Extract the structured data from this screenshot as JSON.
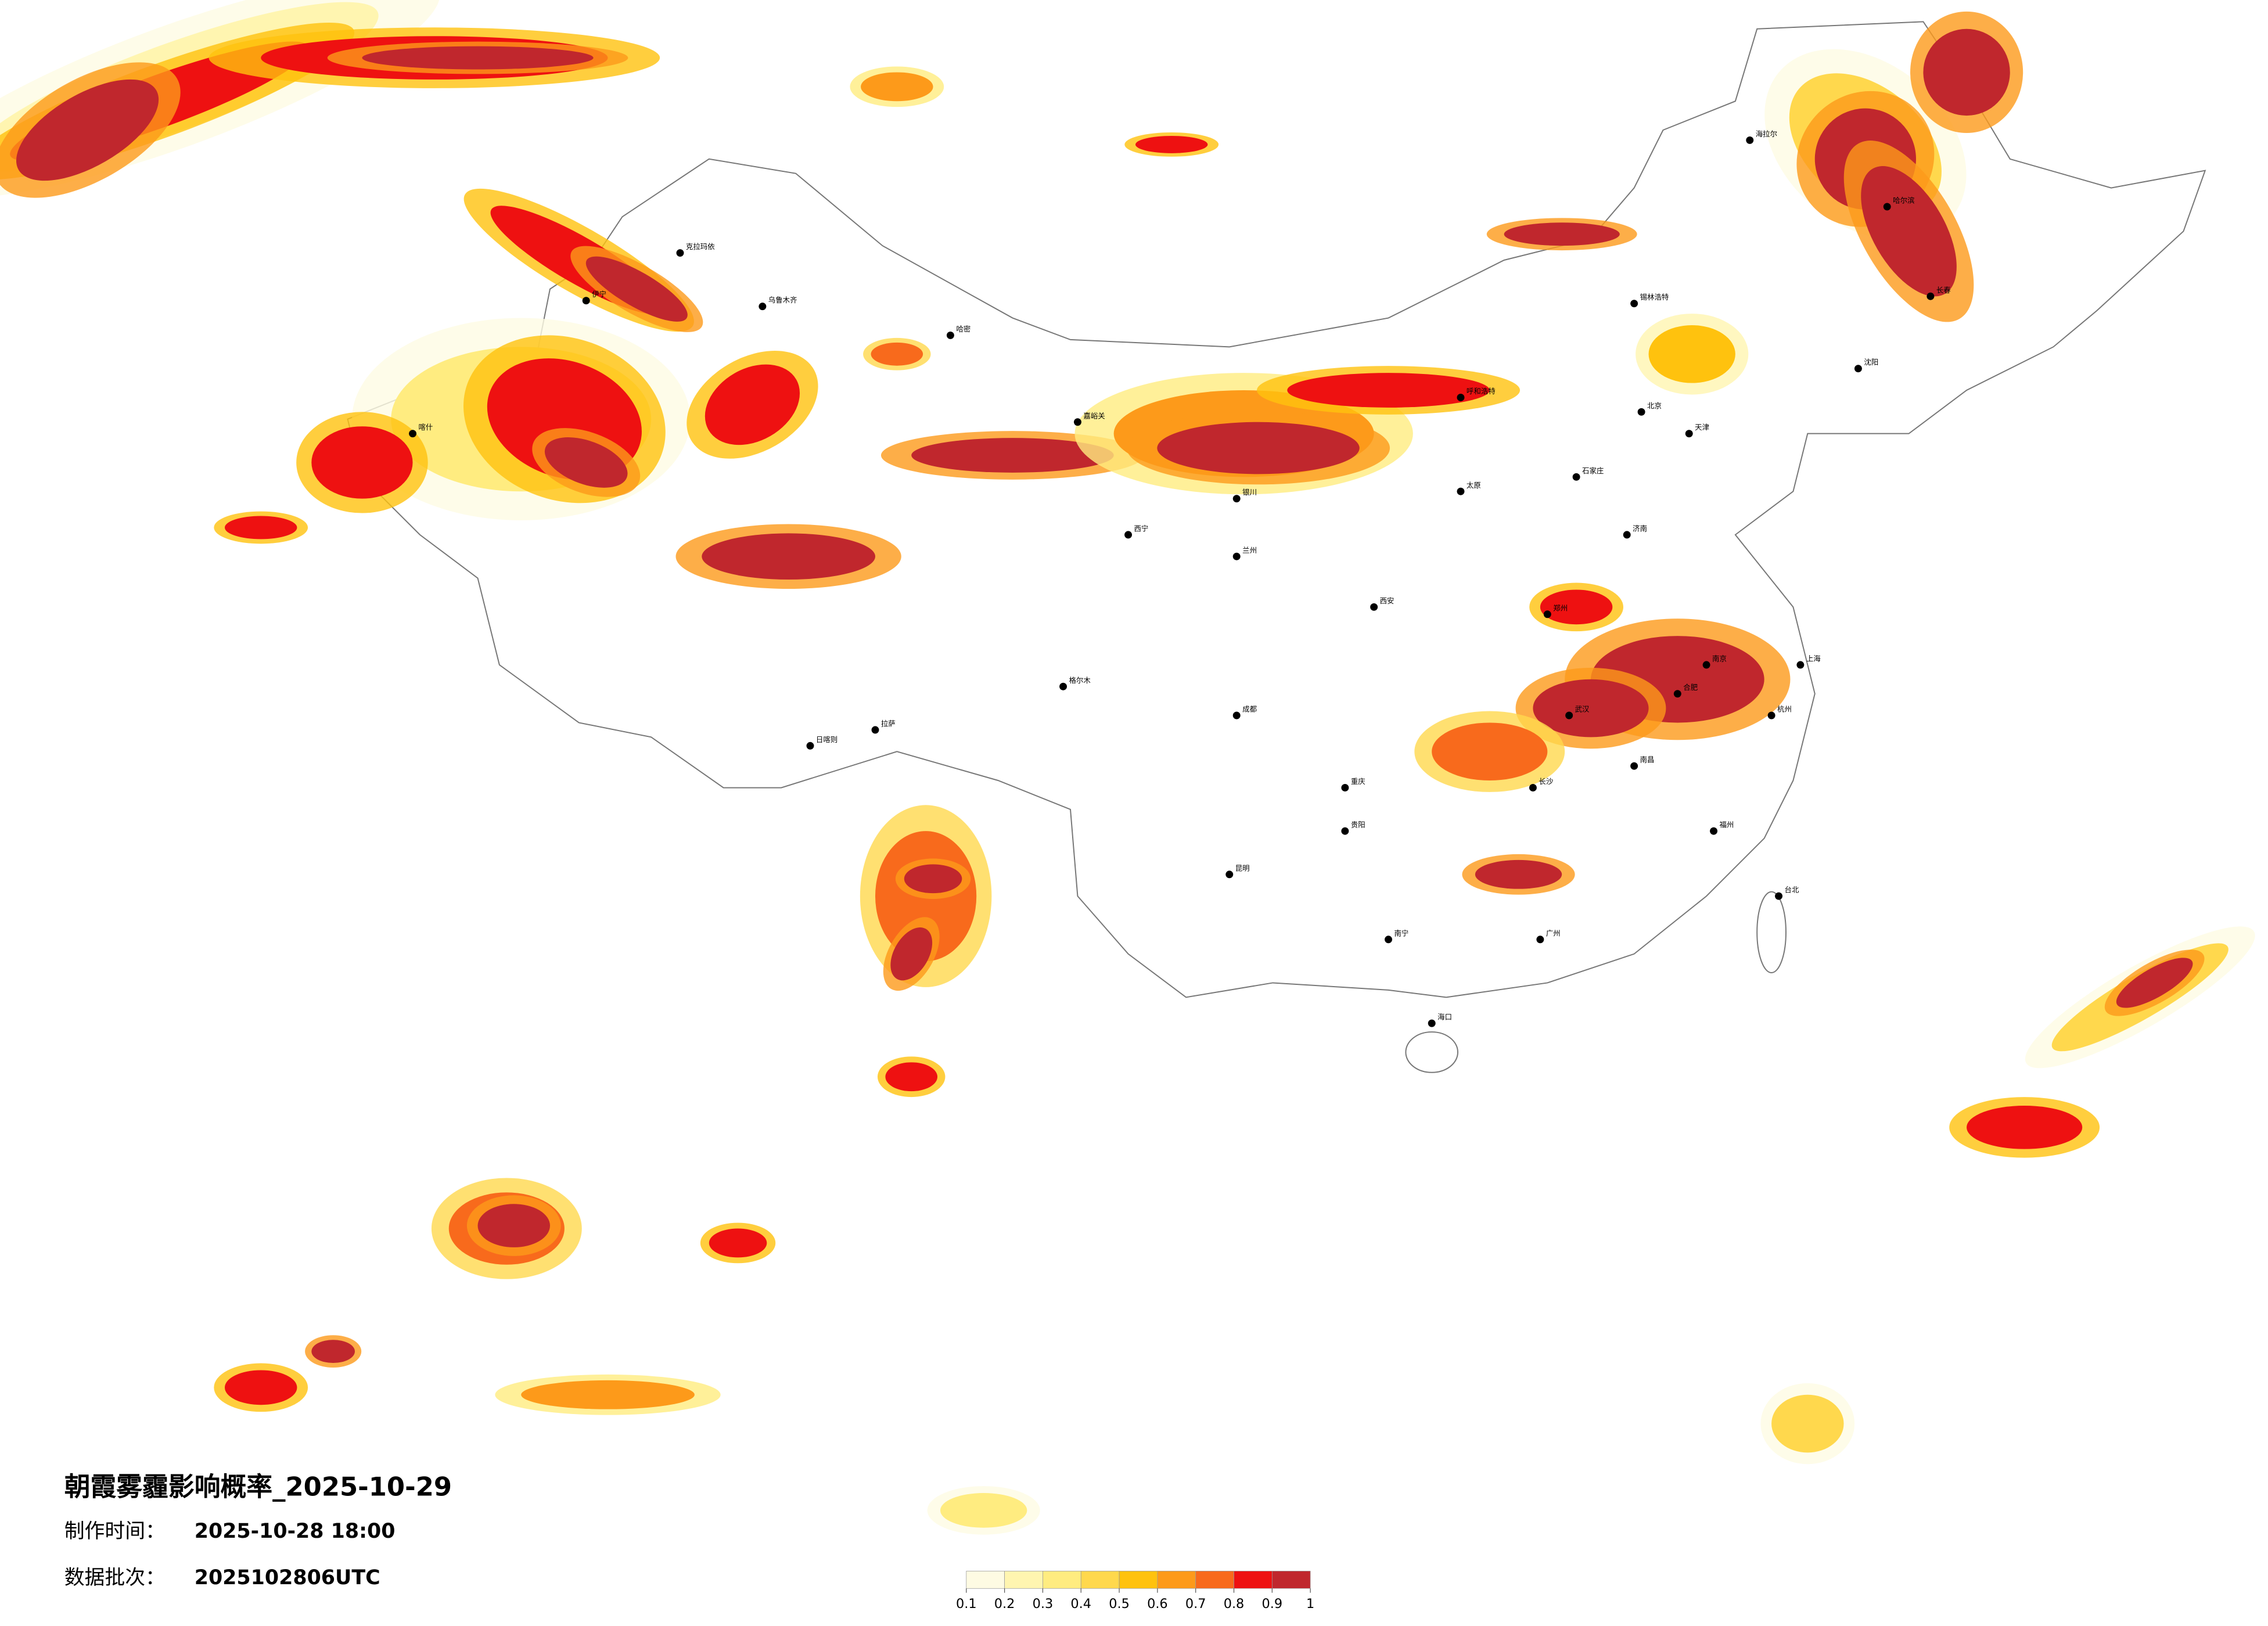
{
  "header": {
    "title": "朝霞雾霾影响概率_2025-10-29",
    "made_label": "制作时间：",
    "made_time": "2025-10-28 18:00",
    "batch_label": "数据批次：",
    "batch": "2025102806UTC"
  },
  "colorbar": {
    "colors": [
      "#fefbe3",
      "#fff5b0",
      "#ffec80",
      "#ffd84d",
      "#ffc20e",
      "#fd9a1a",
      "#f86a1c",
      "#ee1111",
      "#c0272d"
    ],
    "ticks": [
      0.1,
      0.2,
      0.3,
      0.4,
      0.5,
      0.6,
      0.7,
      0.8,
      0.9,
      1
    ]
  },
  "cities": [
    "克拉玛依",
    "伊宁",
    "乌鲁木齐",
    "哈密",
    "喀什",
    "嘉峪关",
    "格尔木",
    "拉萨",
    "日喀则",
    "银川",
    "呼和浩特",
    "锡林浩特",
    "哈尔滨",
    "海拉尔",
    "长春",
    "沈阳",
    "北京",
    "天津",
    "石家庄",
    "太原",
    "济南",
    "郑州",
    "西安",
    "兰州",
    "西宁",
    "成都",
    "重庆",
    "武汉",
    "南京",
    "上海",
    "杭州",
    "长沙",
    "贵阳",
    "昆明",
    "南宁",
    "广州",
    "福州",
    "海口",
    "台北",
    "南昌",
    "合肥"
  ]
}
